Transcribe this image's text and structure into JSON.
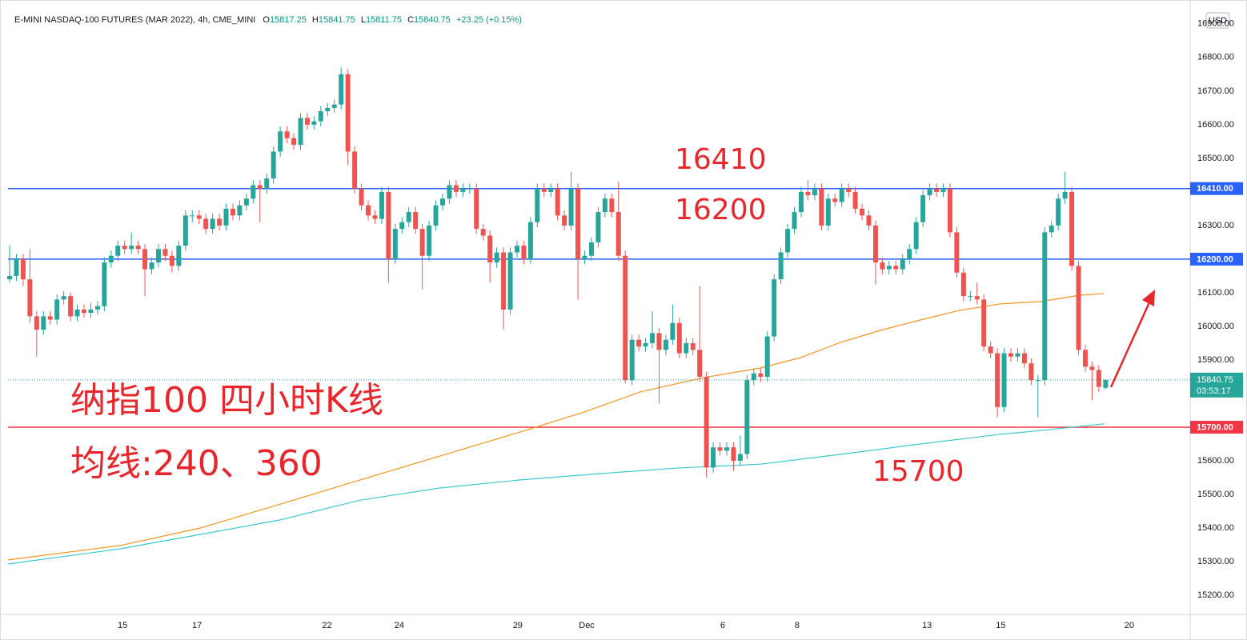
{
  "chart_data": {
    "type": "candlestick",
    "title": "E-MINI NASDAQ-100 FUTURES (MAR 2022), 4h, CME_MINI",
    "ohlc_header": [
      {
        "label": "O",
        "value": 15817.25
      },
      {
        "label": "H",
        "value": 15841.75
      },
      {
        "label": "L",
        "value": 15811.75
      },
      {
        "label": "C",
        "value": 15840.75
      }
    ],
    "change": "+23.25 (+0.15%)",
    "currency": "USD",
    "up_color": "#26a69a",
    "down_color": "#ef5350",
    "xlim": [
      -0.24,
      174.5
    ],
    "ylim": [
      15143,
      16971
    ],
    "yticks": [
      {
        "value": 16900,
        "label": "16900.00"
      },
      {
        "value": 16800,
        "label": "16800.00"
      },
      {
        "value": 16700,
        "label": "16700.00"
      },
      {
        "value": 16600,
        "label": "16600.00"
      },
      {
        "value": 16500,
        "label": "16500.00"
      },
      {
        "value": 16400,
        "label": "16400.00"
      },
      {
        "value": 16300,
        "label": "16300.00"
      },
      {
        "value": 16200,
        "label": "16200.00"
      },
      {
        "value": 16100,
        "label": "16100.00"
      },
      {
        "value": 16000,
        "label": "16000.00"
      },
      {
        "value": 15900,
        "label": "15900.00"
      },
      {
        "value": 15800,
        "label": "15800.00"
      },
      {
        "value": 15700,
        "label": "15700.00"
      },
      {
        "value": 15600,
        "label": "15600.00"
      },
      {
        "value": 15500,
        "label": "15500.00"
      },
      {
        "value": 15400,
        "label": "15400.00"
      },
      {
        "value": 15300,
        "label": "15300.00"
      },
      {
        "value": 15200,
        "label": "15200.00"
      }
    ],
    "xticks": [
      {
        "value": 16.7,
        "label": "15"
      },
      {
        "value": 27.7,
        "label": "17"
      },
      {
        "value": 46.9,
        "label": "22"
      },
      {
        "value": 57.6,
        "label": "24"
      },
      {
        "value": 75.1,
        "label": "29"
      },
      {
        "value": 85.3,
        "label": "Dec"
      },
      {
        "value": 105.4,
        "label": "6"
      },
      {
        "value": 116.4,
        "label": "8"
      },
      {
        "value": 135.6,
        "label": "13"
      },
      {
        "value": 146.5,
        "label": "15"
      },
      {
        "value": 165.5,
        "label": "20"
      }
    ],
    "x": [
      0,
      1,
      2,
      3,
      4,
      5,
      6,
      7,
      8,
      9,
      10,
      11,
      12,
      13,
      14,
      15,
      16,
      17,
      18,
      19,
      20,
      21,
      22,
      23,
      24,
      25,
      26,
      27,
      28,
      29,
      30,
      31,
      32,
      33,
      34,
      35,
      36,
      37,
      38,
      39,
      40,
      41,
      42,
      43,
      44,
      45,
      46,
      47,
      48,
      49,
      50,
      51,
      52,
      53,
      54,
      55,
      56,
      57,
      58,
      59,
      60,
      61,
      62,
      63,
      64,
      65,
      66,
      67,
      68,
      69,
      70,
      71,
      72,
      73,
      74,
      75,
      76,
      77,
      78,
      79,
      80,
      81,
      82,
      83,
      84,
      85,
      86,
      87,
      88,
      89,
      90,
      91,
      92,
      93,
      94,
      95,
      96,
      97,
      98,
      99,
      100,
      101,
      102,
      103,
      104,
      105,
      106,
      107,
      108,
      109,
      110,
      111,
      112,
      113,
      114,
      115,
      116,
      117,
      118,
      119,
      120,
      121,
      122,
      123,
      124,
      125,
      126,
      127,
      128,
      129,
      130,
      131,
      132,
      133,
      134,
      135,
      136,
      137,
      138,
      139,
      140,
      141,
      142,
      143,
      144,
      145,
      146,
      147,
      148,
      149,
      150,
      151,
      152,
      153,
      154,
      155,
      156,
      157,
      158,
      159,
      160,
      161,
      162
    ],
    "ohlc": [
      [
        16140,
        16240,
        16130,
        16150
      ],
      [
        16150,
        16215,
        16135,
        16200
      ],
      [
        16200,
        16215,
        16120,
        16140
      ],
      [
        16140,
        16230,
        16010,
        16030
      ],
      [
        16030,
        16045,
        15910,
        15990
      ],
      [
        15990,
        16045,
        15975,
        16030
      ],
      [
        16030,
        16045,
        16005,
        16020
      ],
      [
        16020,
        16095,
        16005,
        16080
      ],
      [
        16080,
        16105,
        16065,
        16090
      ],
      [
        16090,
        16100,
        16015,
        16030
      ],
      [
        16030,
        16065,
        16015,
        16050
      ],
      [
        16050,
        16065,
        16025,
        16040
      ],
      [
        16040,
        16070,
        16025,
        16050
      ],
      [
        16050,
        16075,
        16035,
        16060
      ],
      [
        16060,
        16205,
        16045,
        16190
      ],
      [
        16190,
        16225,
        16175,
        16210
      ],
      [
        16210,
        16255,
        16195,
        16240
      ],
      [
        16240,
        16255,
        16215,
        16230
      ],
      [
        16230,
        16280,
        16215,
        16240
      ],
      [
        16240,
        16255,
        16215,
        16230
      ],
      [
        16230,
        16245,
        16090,
        16170
      ],
      [
        16170,
        16205,
        16155,
        16190
      ],
      [
        16190,
        16245,
        16175,
        16230
      ],
      [
        16230,
        16245,
        16195,
        16210
      ],
      [
        16210,
        16225,
        16160,
        16180
      ],
      [
        16180,
        16255,
        16165,
        16240
      ],
      [
        16240,
        16345,
        16225,
        16330
      ],
      [
        16330,
        16345,
        16310,
        16330
      ],
      [
        16330,
        16345,
        16305,
        16320
      ],
      [
        16320,
        16335,
        16275,
        16290
      ],
      [
        16290,
        16335,
        16275,
        16320
      ],
      [
        16320,
        16335,
        16285,
        16300
      ],
      [
        16300,
        16365,
        16285,
        16350
      ],
      [
        16350,
        16365,
        16315,
        16330
      ],
      [
        16330,
        16375,
        16315,
        16360
      ],
      [
        16360,
        16395,
        16345,
        16380
      ],
      [
        16380,
        16435,
        16365,
        16420
      ],
      [
        16420,
        16435,
        16310,
        16410
      ],
      [
        16410,
        16455,
        16395,
        16440
      ],
      [
        16440,
        16535,
        16425,
        16520
      ],
      [
        16520,
        16595,
        16505,
        16580
      ],
      [
        16580,
        16595,
        16545,
        16560
      ],
      [
        16560,
        16575,
        16525,
        16540
      ],
      [
        16540,
        16635,
        16525,
        16620
      ],
      [
        16620,
        16635,
        16585,
        16600
      ],
      [
        16600,
        16625,
        16585,
        16610
      ],
      [
        16610,
        16655,
        16595,
        16640
      ],
      [
        16640,
        16665,
        16625,
        16650
      ],
      [
        16650,
        16675,
        16635,
        16660
      ],
      [
        16660,
        16770,
        16645,
        16750
      ],
      [
        16750,
        16765,
        16480,
        16520
      ],
      [
        16520,
        16535,
        16395,
        16410
      ],
      [
        16410,
        16425,
        16345,
        16360
      ],
      [
        16360,
        16375,
        16315,
        16330
      ],
      [
        16330,
        16345,
        16305,
        16320
      ],
      [
        16320,
        16415,
        16305,
        16400
      ],
      [
        16400,
        16415,
        16130,
        16200
      ],
      [
        16200,
        16305,
        16185,
        16290
      ],
      [
        16290,
        16325,
        16275,
        16310
      ],
      [
        16310,
        16355,
        16295,
        16340
      ],
      [
        16340,
        16355,
        16275,
        16290
      ],
      [
        16290,
        16305,
        16110,
        16210
      ],
      [
        16210,
        16315,
        16195,
        16300
      ],
      [
        16300,
        16375,
        16285,
        16360
      ],
      [
        16360,
        16395,
        16345,
        16380
      ],
      [
        16380,
        16435,
        16365,
        16420
      ],
      [
        16420,
        16435,
        16385,
        16400
      ],
      [
        16400,
        16425,
        16385,
        16410
      ],
      [
        16410,
        16425,
        16395,
        16410
      ],
      [
        16410,
        16425,
        16275,
        16290
      ],
      [
        16290,
        16305,
        16255,
        16270
      ],
      [
        16270,
        16285,
        16130,
        16190
      ],
      [
        16190,
        16235,
        16175,
        16220
      ],
      [
        16220,
        16235,
        15990,
        16050
      ],
      [
        16050,
        16235,
        16035,
        16220
      ],
      [
        16220,
        16255,
        16205,
        16240
      ],
      [
        16240,
        16255,
        16185,
        16200
      ],
      [
        16200,
        16325,
        16185,
        16310
      ],
      [
        16310,
        16425,
        16295,
        16410
      ],
      [
        16410,
        16425,
        16385,
        16400
      ],
      [
        16400,
        16425,
        16385,
        16410
      ],
      [
        16410,
        16425,
        16315,
        16330
      ],
      [
        16330,
        16345,
        16285,
        16300
      ],
      [
        16300,
        16460,
        16285,
        16410
      ],
      [
        16410,
        16425,
        16080,
        16200
      ],
      [
        16200,
        16225,
        16185,
        16210
      ],
      [
        16210,
        16265,
        16195,
        16250
      ],
      [
        16250,
        16355,
        16235,
        16340
      ],
      [
        16340,
        16395,
        16325,
        16380
      ],
      [
        16380,
        16395,
        16325,
        16340
      ],
      [
        16340,
        16430,
        16195,
        16210
      ],
      [
        16210,
        16225,
        15830,
        15840
      ],
      [
        15840,
        15975,
        15825,
        15960
      ],
      [
        15960,
        15975,
        15925,
        15940
      ],
      [
        15940,
        15965,
        15925,
        15950
      ],
      [
        15950,
        16045,
        15935,
        15980
      ],
      [
        15980,
        15995,
        15770,
        15930
      ],
      [
        15930,
        15975,
        15915,
        15960
      ],
      [
        15960,
        16065,
        15945,
        16010
      ],
      [
        16010,
        16025,
        15905,
        15920
      ],
      [
        15920,
        15965,
        15905,
        15950
      ],
      [
        15950,
        15965,
        15915,
        15930
      ],
      [
        15930,
        16120,
        15835,
        15850
      ],
      [
        15850,
        15865,
        15550,
        15580
      ],
      [
        15580,
        15655,
        15565,
        15640
      ],
      [
        15640,
        15655,
        15615,
        15630
      ],
      [
        15630,
        15655,
        15615,
        15640
      ],
      [
        15640,
        15655,
        15570,
        15600
      ],
      [
        15600,
        15675,
        15585,
        15620
      ],
      [
        15620,
        15855,
        15605,
        15840
      ],
      [
        15840,
        15875,
        15825,
        15860
      ],
      [
        15860,
        15875,
        15835,
        15850
      ],
      [
        15850,
        15985,
        15835,
        15970
      ],
      [
        15970,
        16155,
        15955,
        16140
      ],
      [
        16140,
        16235,
        16125,
        16220
      ],
      [
        16220,
        16305,
        16205,
        16290
      ],
      [
        16290,
        16355,
        16275,
        16340
      ],
      [
        16340,
        16415,
        16325,
        16400
      ],
      [
        16400,
        16435,
        16375,
        16390
      ],
      [
        16390,
        16425,
        16375,
        16410
      ],
      [
        16410,
        16425,
        16285,
        16300
      ],
      [
        16300,
        16395,
        16285,
        16380
      ],
      [
        16380,
        16395,
        16355,
        16370
      ],
      [
        16370,
        16425,
        16355,
        16410
      ],
      [
        16410,
        16425,
        16385,
        16400
      ],
      [
        16400,
        16415,
        16335,
        16350
      ],
      [
        16350,
        16365,
        16315,
        16330
      ],
      [
        16330,
        16345,
        16285,
        16300
      ],
      [
        16300,
        16315,
        16125,
        16190
      ],
      [
        16190,
        16205,
        16155,
        16170
      ],
      [
        16170,
        16195,
        16155,
        16180
      ],
      [
        16180,
        16195,
        16155,
        16170
      ],
      [
        16170,
        16215,
        16155,
        16200
      ],
      [
        16200,
        16245,
        16185,
        16230
      ],
      [
        16230,
        16325,
        16215,
        16310
      ],
      [
        16310,
        16405,
        16295,
        16390
      ],
      [
        16390,
        16425,
        16375,
        16410
      ],
      [
        16410,
        16425,
        16385,
        16400
      ],
      [
        16400,
        16425,
        16385,
        16410
      ],
      [
        16410,
        16425,
        16265,
        16280
      ],
      [
        16280,
        16295,
        16145,
        16160
      ],
      [
        16160,
        16175,
        16075,
        16090
      ],
      [
        16090,
        16105,
        16075,
        16090
      ],
      [
        16090,
        16130,
        16065,
        16080
      ],
      [
        16080,
        16095,
        15925,
        15940
      ],
      [
        15940,
        15955,
        15905,
        15920
      ],
      [
        15920,
        15935,
        15730,
        15760
      ],
      [
        15760,
        15935,
        15745,
        15920
      ],
      [
        15920,
        15935,
        15895,
        15910
      ],
      [
        15910,
        15935,
        15895,
        15920
      ],
      [
        15920,
        15935,
        15875,
        15890
      ],
      [
        15890,
        15905,
        15825,
        15840
      ],
      [
        15840,
        15855,
        15730,
        15840
      ],
      [
        15840,
        16295,
        15825,
        16280
      ],
      [
        16280,
        16315,
        16265,
        16300
      ],
      [
        16300,
        16395,
        16285,
        16380
      ],
      [
        16380,
        16460,
        16365,
        16400
      ],
      [
        16400,
        16415,
        16165,
        16180
      ],
      [
        16180,
        16195,
        15915,
        15930
      ],
      [
        15930,
        15945,
        15865,
        15880
      ],
      [
        15880,
        15895,
        15780,
        15870
      ],
      [
        15870,
        15885,
        15805,
        15820
      ],
      [
        15817.25,
        15841.75,
        15811.75,
        15840.75
      ]
    ],
    "series": [
      {
        "color": "#f7931e",
        "x": [
          -0.24,
          16.3,
          28.2,
          40.0,
          51.8,
          63.6,
          75.5,
          84.9,
          93.2,
          102.7,
          111.0,
          116.9,
          122.8,
          128.7,
          134.6,
          140.5,
          146.5,
          152.4,
          158.3,
          161.8
        ],
        "values": [
          15305,
          15348,
          15400,
          15471,
          15543,
          15614,
          15686,
          15745,
          15805,
          15848,
          15876,
          15907,
          15952,
          15988,
          16019,
          16048,
          16067,
          16074,
          16093,
          16098
        ]
      },
      {
        "color": "#3cc8d0",
        "x": [
          -0.24,
          16.3,
          28.2,
          40.0,
          51.8,
          63.6,
          75.5,
          87.3,
          99.1,
          111.0,
          122.8,
          134.6,
          146.5,
          152.4,
          161.8
        ],
        "values": [
          15293,
          15338,
          15381,
          15424,
          15483,
          15519,
          15543,
          15562,
          15579,
          15590,
          15619,
          15650,
          15679,
          15690,
          15710
        ]
      }
    ],
    "levels": [
      {
        "value": 16410,
        "label": "16410.00",
        "color": "#2962ff"
      },
      {
        "value": 16200,
        "label": "16200.00",
        "color": "#2962ff"
      },
      {
        "value": 15700,
        "label": "15700.00",
        "color": "#f23645"
      }
    ],
    "last_price": 15840.75,
    "countdown": "03:53:17",
    "annotation_color": "#e8262b",
    "annotations": [
      {
        "text": "16410"
      },
      {
        "text": "16200"
      },
      {
        "text": "15700"
      },
      {
        "text": "纳指100 四小时K线"
      },
      {
        "text": "均线:240、360"
      }
    ]
  }
}
